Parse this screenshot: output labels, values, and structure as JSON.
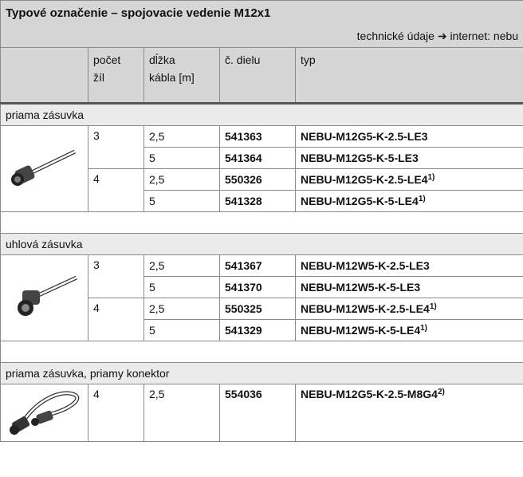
{
  "header": {
    "title": "Typové označenie – spojovacie vedenie M12x1",
    "link": "technické údaje ➔ internet: nebu"
  },
  "columns": [
    [
      "počet",
      "žíl"
    ],
    [
      "dĺžka",
      "kábla [m]"
    ],
    [
      "č. dielu"
    ],
    [
      "typ"
    ]
  ],
  "sections": [
    {
      "label": "priama zásuvka",
      "groups": [
        {
          "cores": "3",
          "rows": [
            {
              "length": "2,5",
              "part": "541363",
              "type": "NEBU-M12G5-K-2.5-LE3"
            },
            {
              "length": "5",
              "part": "541364",
              "type": "NEBU-M12G5-K-5-LE3"
            }
          ]
        },
        {
          "cores": "4",
          "rows": [
            {
              "length": "2,5",
              "part": "550326",
              "type": "NEBU-M12G5-K-2.5-LE4",
              "note": "1)"
            },
            {
              "length": "5",
              "part": "541328",
              "type": "NEBU-M12G5-K-5-LE4",
              "note": "1)"
            }
          ]
        }
      ]
    },
    {
      "label": "uhlová zásuvka",
      "groups": [
        {
          "cores": "3",
          "rows": [
            {
              "length": "2,5",
              "part": "541367",
              "type": "NEBU-M12W5-K-2.5-LE3"
            },
            {
              "length": "5",
              "part": "541370",
              "type": "NEBU-M12W5-K-5-LE3"
            }
          ]
        },
        {
          "cores": "4",
          "rows": [
            {
              "length": "2,5",
              "part": "550325",
              "type": "NEBU-M12W5-K-2.5-LE4",
              "note": "1)"
            },
            {
              "length": "5",
              "part": "541329",
              "type": "NEBU-M12W5-K-5-LE4",
              "note": "1)"
            }
          ]
        }
      ]
    },
    {
      "label": "priama zásuvka, priamy konektor",
      "groups": [
        {
          "cores": "4",
          "rows": [
            {
              "length": "2,5",
              "part": "554036",
              "type": "NEBU-M12G5-K-2.5-M8G4",
              "note": "2)"
            }
          ]
        }
      ]
    }
  ]
}
